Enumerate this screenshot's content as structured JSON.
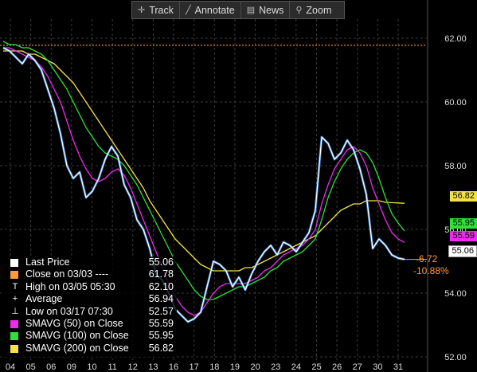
{
  "toolbar": {
    "track": "Track",
    "annotate": "Annotate",
    "news": "News",
    "zoom": "Zoom"
  },
  "colors": {
    "price": "#ffffff",
    "price_highlight": "#4aa3ff",
    "sma50": "#ee2bee",
    "sma100": "#2ee03a",
    "sma200": "#f5e24a",
    "close_line": "#ff9a3c",
    "grid": "#3a3a3a"
  },
  "chart_data": {
    "type": "line",
    "ylim": [
      51.9,
      62.6
    ],
    "yticks": [
      52.0,
      54.0,
      56.0,
      58.0,
      60.0,
      62.0
    ],
    "ytick_labels": [
      "52.00",
      "54.00",
      "56.00",
      "58.00",
      "60.00",
      "62.00"
    ],
    "xtick_labels": [
      "04",
      "05",
      "06",
      "09",
      "10",
      "11",
      "12",
      "13",
      "16",
      "17",
      "18",
      "19",
      "20",
      "23",
      "24",
      "25",
      "26",
      "27",
      "30",
      "31"
    ],
    "close_reference": 61.78,
    "series": [
      {
        "name": "Last Price",
        "values": [
          61.7,
          61.6,
          61.4,
          61.2,
          61.5,
          61.3,
          61.0,
          60.4,
          59.8,
          59.0,
          58.0,
          57.6,
          57.8,
          57.0,
          57.2,
          57.6,
          58.2,
          58.6,
          58.3,
          57.4,
          57.0,
          56.3,
          56.0,
          55.4,
          54.6,
          54.4,
          54.0,
          53.5,
          53.3,
          53.1,
          53.2,
          53.4,
          54.2,
          55.0,
          54.9,
          54.7,
          54.2,
          54.5,
          54.1,
          54.6,
          55.0,
          55.3,
          55.5,
          55.2,
          55.6,
          55.5,
          55.3,
          55.6,
          55.9,
          56.6,
          58.9,
          58.7,
          58.2,
          58.4,
          58.8,
          58.5,
          57.9,
          57.1,
          55.4,
          55.7,
          55.5,
          55.2,
          55.1,
          55.06
        ]
      },
      {
        "name": "SMAVG (50) on Close",
        "values": [
          61.7,
          61.7,
          61.6,
          61.5,
          61.4,
          61.3,
          61.1,
          60.8,
          60.4,
          60.0,
          59.4,
          58.8,
          58.3,
          57.9,
          57.6,
          57.5,
          57.6,
          57.8,
          57.9,
          57.7,
          57.3,
          56.8,
          56.3,
          55.8,
          55.3,
          54.8,
          54.3,
          53.9,
          53.6,
          53.4,
          53.3,
          53.4,
          53.7,
          54.0,
          54.2,
          54.3,
          54.3,
          54.3,
          54.3,
          54.4,
          54.5,
          54.7,
          54.8,
          55.0,
          55.2,
          55.3,
          55.4,
          55.5,
          55.7,
          56.0,
          56.8,
          57.4,
          57.9,
          58.2,
          58.5,
          58.6,
          58.4,
          58.0,
          57.3,
          56.8,
          56.3,
          55.9,
          55.7,
          55.59
        ]
      },
      {
        "name": "SMAVG (100) on Close",
        "values": [
          61.9,
          61.8,
          61.8,
          61.7,
          61.7,
          61.6,
          61.5,
          61.3,
          61.0,
          60.7,
          60.4,
          60.0,
          59.6,
          59.2,
          58.9,
          58.6,
          58.4,
          58.3,
          58.2,
          58.0,
          57.7,
          57.4,
          57.0,
          56.6,
          56.2,
          55.8,
          55.4,
          55.0,
          54.7,
          54.4,
          54.1,
          53.9,
          53.8,
          53.8,
          53.9,
          54.0,
          54.1,
          54.2,
          54.2,
          54.3,
          54.4,
          54.5,
          54.7,
          54.8,
          55.0,
          55.1,
          55.2,
          55.3,
          55.5,
          55.7,
          56.3,
          57.0,
          57.5,
          57.9,
          58.2,
          58.4,
          58.5,
          58.4,
          58.1,
          57.6,
          57.0,
          56.5,
          56.2,
          55.95
        ]
      },
      {
        "name": "SMAVG (200) on Close",
        "values": [
          61.6,
          61.6,
          61.6,
          61.6,
          61.5,
          61.5,
          61.4,
          61.3,
          61.2,
          61.0,
          60.8,
          60.6,
          60.3,
          60.0,
          59.7,
          59.4,
          59.1,
          58.8,
          58.5,
          58.2,
          57.9,
          57.6,
          57.3,
          56.9,
          56.6,
          56.3,
          56.0,
          55.7,
          55.5,
          55.3,
          55.1,
          54.9,
          54.8,
          54.7,
          54.7,
          54.7,
          54.7,
          54.7,
          54.8,
          54.8,
          54.9,
          55.0,
          55.1,
          55.2,
          55.3,
          55.4,
          55.5,
          55.6,
          55.7,
          55.8,
          56.0,
          56.2,
          56.4,
          56.6,
          56.7,
          56.8,
          56.8,
          56.9,
          56.9,
          56.9,
          56.85,
          56.84,
          56.83,
          56.82
        ]
      }
    ],
    "legend": [
      {
        "glyph": "swatch",
        "color": "#ffffff",
        "label": "Last Price",
        "value": "55.06"
      },
      {
        "glyph": "swatch",
        "color": "#ff9a3c",
        "label": "Close on 03/03 ----",
        "value": "61.78"
      },
      {
        "glyph": "T",
        "color": "#ffffff",
        "label": "High on 03/05 05:30",
        "value": "62.10"
      },
      {
        "glyph": "+",
        "color": "#ffffff",
        "label": "Average",
        "value": "56.94"
      },
      {
        "glyph": "⊥",
        "color": "#ffffff",
        "label": "Low on 03/17 07:30",
        "value": "52.57"
      },
      {
        "glyph": "swatch",
        "color": "#ee2bee",
        "label": "SMAVG (50) on Close",
        "value": "55.59"
      },
      {
        "glyph": "swatch",
        "color": "#2ee03a",
        "label": "SMAVG (100) on Close",
        "value": "55.95"
      },
      {
        "glyph": "swatch",
        "color": "#f5e24a",
        "label": "SMAVG (200) on Close",
        "value": "56.82"
      }
    ],
    "price_tags": {
      "sma200": "56.82",
      "sma100": "55.95",
      "sma50": "55.59",
      "last": "55.06"
    },
    "change_abs": "-6.72",
    "change_pct": "-10.88%"
  }
}
